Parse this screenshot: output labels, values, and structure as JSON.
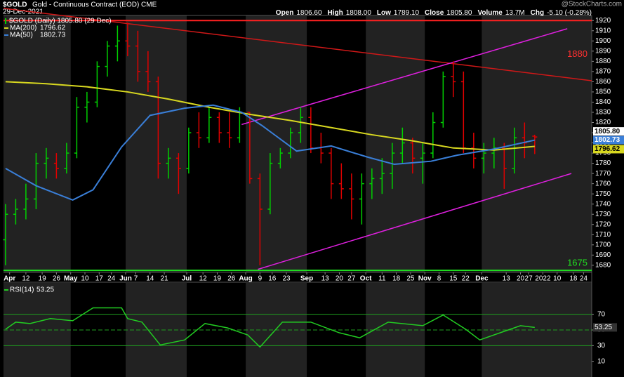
{
  "chart_data": {
    "type": "ohlc",
    "title": "$GOLD",
    "subtitle": "Gold - Continuous Contract (EOD) CME",
    "date": "29-Dec-2021",
    "watermark": "@StockCharts.com",
    "quote": [
      {
        "label": "Open",
        "value": "1806.60"
      },
      {
        "label": "High",
        "value": "1808.00"
      },
      {
        "label": "Low",
        "value": "1789.10"
      },
      {
        "label": "Close",
        "value": "1805.80"
      },
      {
        "label": "Volume",
        "value": "13.7M"
      },
      {
        "label": "Chg",
        "value": "-5.10 (-0.28%)"
      }
    ],
    "price_legend": "$GOLD (Daily) 1805.80 (29 Dec)",
    "last_price_label": "1805.80",
    "up_color": "#00d000",
    "down_color": "#e00000",
    "x": [
      0,
      5,
      10,
      15,
      20,
      25,
      30,
      35,
      40,
      45,
      50,
      55,
      60,
      65,
      70,
      75,
      80,
      85,
      90,
      95,
      100,
      105,
      110,
      115,
      120,
      125,
      130,
      135,
      140,
      145,
      150,
      155,
      160,
      165,
      170,
      175,
      180,
      185,
      190,
      195,
      200,
      205,
      210,
      215,
      220,
      225,
      230,
      235,
      240,
      245,
      250,
      255,
      260
    ],
    "open": [
      1705,
      1730,
      1735,
      1745,
      1780,
      1780,
      1775,
      1790,
      1835,
      1840,
      1875,
      1895,
      1900,
      1895,
      1870,
      1860,
      1780,
      1785,
      1775,
      1810,
      1805,
      1825,
      1810,
      1805,
      1830,
      1765,
      1735,
      1780,
      1790,
      1810,
      1825,
      1795,
      1790,
      1760,
      1755,
      1745,
      1760,
      1765,
      1770,
      1790,
      1800,
      1785,
      1790,
      1820,
      1865,
      1860,
      1795,
      1785,
      1790,
      1795,
      1775,
      1805,
      1806.6
    ],
    "high": [
      1740,
      1745,
      1760,
      1790,
      1795,
      1790,
      1800,
      1845,
      1850,
      1880,
      1900,
      1915,
      1918,
      1910,
      1890,
      1865,
      1795,
      1790,
      1815,
      1830,
      1835,
      1830,
      1830,
      1835,
      1830,
      1770,
      1790,
      1795,
      1815,
      1835,
      1835,
      1810,
      1795,
      1780,
      1770,
      1770,
      1775,
      1785,
      1800,
      1815,
      1805,
      1800,
      1830,
      1870,
      1880,
      1870,
      1810,
      1800,
      1805,
      1800,
      1815,
      1820,
      1808
    ],
    "low": [
      1680,
      1720,
      1725,
      1735,
      1765,
      1765,
      1770,
      1785,
      1820,
      1835,
      1865,
      1880,
      1885,
      1860,
      1850,
      1765,
      1765,
      1750,
      1770,
      1795,
      1800,
      1800,
      1795,
      1800,
      1760,
      1680,
      1730,
      1775,
      1785,
      1800,
      1790,
      1780,
      1745,
      1745,
      1725,
      1720,
      1745,
      1750,
      1755,
      1780,
      1770,
      1760,
      1785,
      1815,
      1845,
      1790,
      1775,
      1770,
      1775,
      1755,
      1770,
      1785,
      1789.1
    ],
    "close": [
      1730,
      1735,
      1745,
      1780,
      1785,
      1775,
      1790,
      1835,
      1840,
      1875,
      1895,
      1900,
      1895,
      1870,
      1860,
      1780,
      1785,
      1775,
      1810,
      1805,
      1825,
      1810,
      1805,
      1830,
      1765,
      1735,
      1780,
      1790,
      1810,
      1825,
      1795,
      1790,
      1760,
      1755,
      1745,
      1760,
      1765,
      1770,
      1790,
      1800,
      1785,
      1790,
      1820,
      1865,
      1860,
      1795,
      1785,
      1790,
      1795,
      1775,
      1805,
      1800,
      1805.8
    ],
    "series": [
      {
        "name": "MA(200)",
        "color": "#d8d820",
        "x": [
          0,
          20,
          40,
          60,
          80,
          100,
          120,
          140,
          160,
          180,
          200,
          220,
          240,
          260
        ],
        "values": [
          1860,
          1858,
          1855,
          1850,
          1843,
          1835,
          1828,
          1822,
          1815,
          1808,
          1802,
          1795,
          1793,
          1796.62
        ]
      },
      {
        "name": "MA(50)",
        "color": "#3a7fd8",
        "x": [
          0,
          15,
          33,
          43,
          57,
          71,
          88,
          102,
          116,
          126,
          143,
          160,
          178,
          191,
          209,
          222,
          240,
          260
        ],
        "values": [
          1775,
          1758,
          1744,
          1754,
          1796,
          1827,
          1834,
          1837,
          1830,
          1817,
          1792,
          1797,
          1786,
          1779,
          1782,
          1788,
          1794,
          1802.73
        ]
      }
    ],
    "xlim": [
      -1,
      288
    ],
    "xticks": [
      {
        "value": 2,
        "label": "Apr"
      },
      {
        "value": 10,
        "label": "12"
      },
      {
        "value": 18,
        "label": "19"
      },
      {
        "value": 25,
        "label": "26"
      },
      {
        "value": 32,
        "label": "May"
      },
      {
        "value": 39,
        "label": "10"
      },
      {
        "value": 46,
        "label": "17"
      },
      {
        "value": 52,
        "label": "24"
      },
      {
        "value": 59,
        "label": "Jun"
      },
      {
        "value": 64,
        "label": "7"
      },
      {
        "value": 71,
        "label": "14"
      },
      {
        "value": 78,
        "label": "21"
      },
      {
        "value": 89,
        "label": "Jul"
      },
      {
        "value": 97,
        "label": "12"
      },
      {
        "value": 104,
        "label": "19"
      },
      {
        "value": 111,
        "label": "26"
      },
      {
        "value": 118,
        "label": "Aug"
      },
      {
        "value": 125,
        "label": "9"
      },
      {
        "value": 131,
        "label": "16"
      },
      {
        "value": 138,
        "label": "23"
      },
      {
        "value": 148,
        "label": "Sep"
      },
      {
        "value": 157,
        "label": "13"
      },
      {
        "value": 164,
        "label": "20"
      },
      {
        "value": 170,
        "label": "27"
      },
      {
        "value": 177,
        "label": "Oct"
      },
      {
        "value": 185,
        "label": "11"
      },
      {
        "value": 192,
        "label": "18"
      },
      {
        "value": 199,
        "label": "25"
      },
      {
        "value": 206,
        "label": "Nov"
      },
      {
        "value": 213,
        "label": "8"
      },
      {
        "value": 220,
        "label": "15"
      },
      {
        "value": 226,
        "label": "22"
      },
      {
        "value": 234,
        "label": "Dec"
      },
      {
        "value": 246,
        "label": "13"
      },
      {
        "value": 253,
        "label": "20"
      },
      {
        "value": 257,
        "label": "27"
      },
      {
        "value": 264,
        "label": "2022"
      },
      {
        "value": 271,
        "label": "10"
      },
      {
        "value": 279,
        "label": "18"
      },
      {
        "value": 284,
        "label": "24"
      }
    ],
    "ylim": [
      1673,
      1925
    ],
    "yticks": [
      1680,
      1690,
      1700,
      1710,
      1720,
      1730,
      1740,
      1750,
      1760,
      1770,
      1780,
      1790,
      1800,
      1810,
      1820,
      1830,
      1840,
      1850,
      1860,
      1870,
      1880,
      1890,
      1900,
      1910,
      1920
    ],
    "levels": [
      {
        "value": 1920,
        "color": "#ff2020"
      },
      {
        "value": 1675,
        "color": "#20e020"
      }
    ],
    "trendlines": [
      {
        "color": "#d01818",
        "x": [
          -1,
          288
        ],
        "y": [
          1932,
          1861
        ]
      },
      {
        "color": "#e020e0",
        "x": [
          116,
          276
        ],
        "y": [
          1818,
          1912
        ]
      },
      {
        "color": "#e020e0",
        "x": [
          124,
          278
        ],
        "y": [
          1676,
          1770
        ]
      }
    ],
    "annotations": [
      {
        "value": 1880,
        "color": "#ff3030"
      },
      {
        "value": 1675,
        "color": "#20e020"
      }
    ],
    "rsi": {
      "name": "RSI(14)",
      "color": "#22cc22",
      "x": [
        0,
        5,
        12,
        22,
        33,
        43,
        57,
        60,
        67,
        76,
        88,
        98,
        109,
        119,
        125,
        136,
        150,
        164,
        174,
        188,
        205,
        215,
        226,
        233,
        243,
        253,
        260
      ],
      "values": [
        50.9,
        60,
        58.2,
        64.5,
        61.8,
        78.2,
        78.2,
        64.5,
        60,
        30.9,
        37.3,
        58.2,
        52.7,
        43.6,
        28.2,
        60,
        60,
        46.4,
        40,
        60,
        55.5,
        69.1,
        51,
        37.3,
        46.4,
        55.5,
        53.25
      ],
      "ylim": [
        -10,
        110
      ],
      "yticks": [
        10,
        30,
        50,
        70
      ],
      "guides": [
        30,
        70
      ],
      "midline": 50
    }
  }
}
